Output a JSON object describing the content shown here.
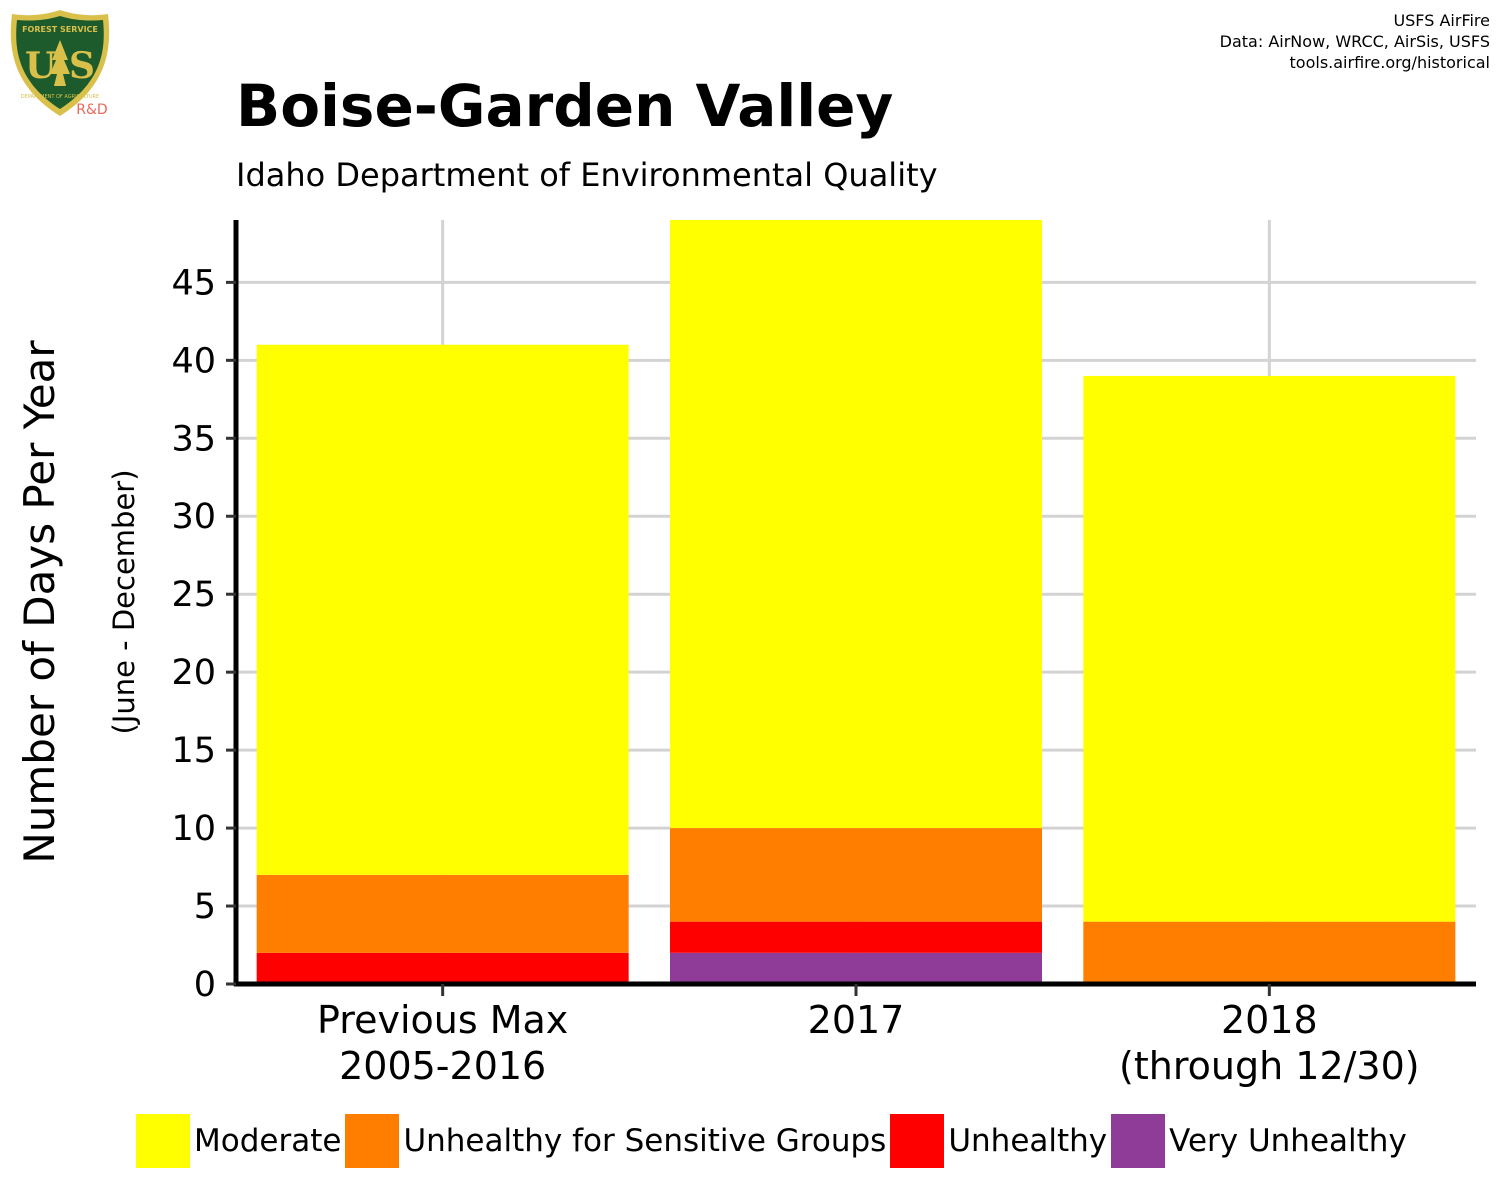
{
  "logo": {
    "top_text": "FOREST SERVICE",
    "letters": "U S",
    "bottom_text": "DEPARTMENT OF AGRICULTURE",
    "tag": "R&D",
    "colors": {
      "shield": "#1d5a2c",
      "rim": "#d8c04a",
      "tag": "#e8695a"
    }
  },
  "credits": [
    "USFS AirFire",
    "Data: AirNow, WRCC, AirSis, USFS",
    "tools.airfire.org/historical"
  ],
  "title": "Boise-Garden Valley",
  "subtitle": "Idaho Department of Environmental Quality",
  "chart_data": {
    "type": "bar",
    "stacked": true,
    "ylabel": "Number of Days Per Year",
    "ylabel_sub": "(June - December)",
    "categories": [
      [
        "Previous Max",
        "2005-2016"
      ],
      [
        "2017"
      ],
      [
        "2018",
        "(through 12/30)"
      ]
    ],
    "ylim": [
      0,
      49
    ],
    "yticks": [
      0,
      5,
      10,
      15,
      20,
      25,
      30,
      35,
      40,
      45
    ],
    "grid": true,
    "legend_position": "bottom",
    "series": [
      {
        "name": "Very Unhealthy",
        "color": "#8e3c97",
        "values": [
          0,
          2,
          0
        ]
      },
      {
        "name": "Unhealthy",
        "color": "#ff0000",
        "values": [
          2,
          2,
          0
        ]
      },
      {
        "name": "Unhealthy for Sensitive Groups",
        "color": "#ff7e00",
        "values": [
          5,
          6,
          4
        ]
      },
      {
        "name": "Moderate",
        "color": "#ffff00",
        "values": [
          34,
          39,
          35
        ]
      }
    ],
    "legend_order": [
      "Moderate",
      "Unhealthy for Sensitive Groups",
      "Unhealthy",
      "Very Unhealthy"
    ]
  }
}
